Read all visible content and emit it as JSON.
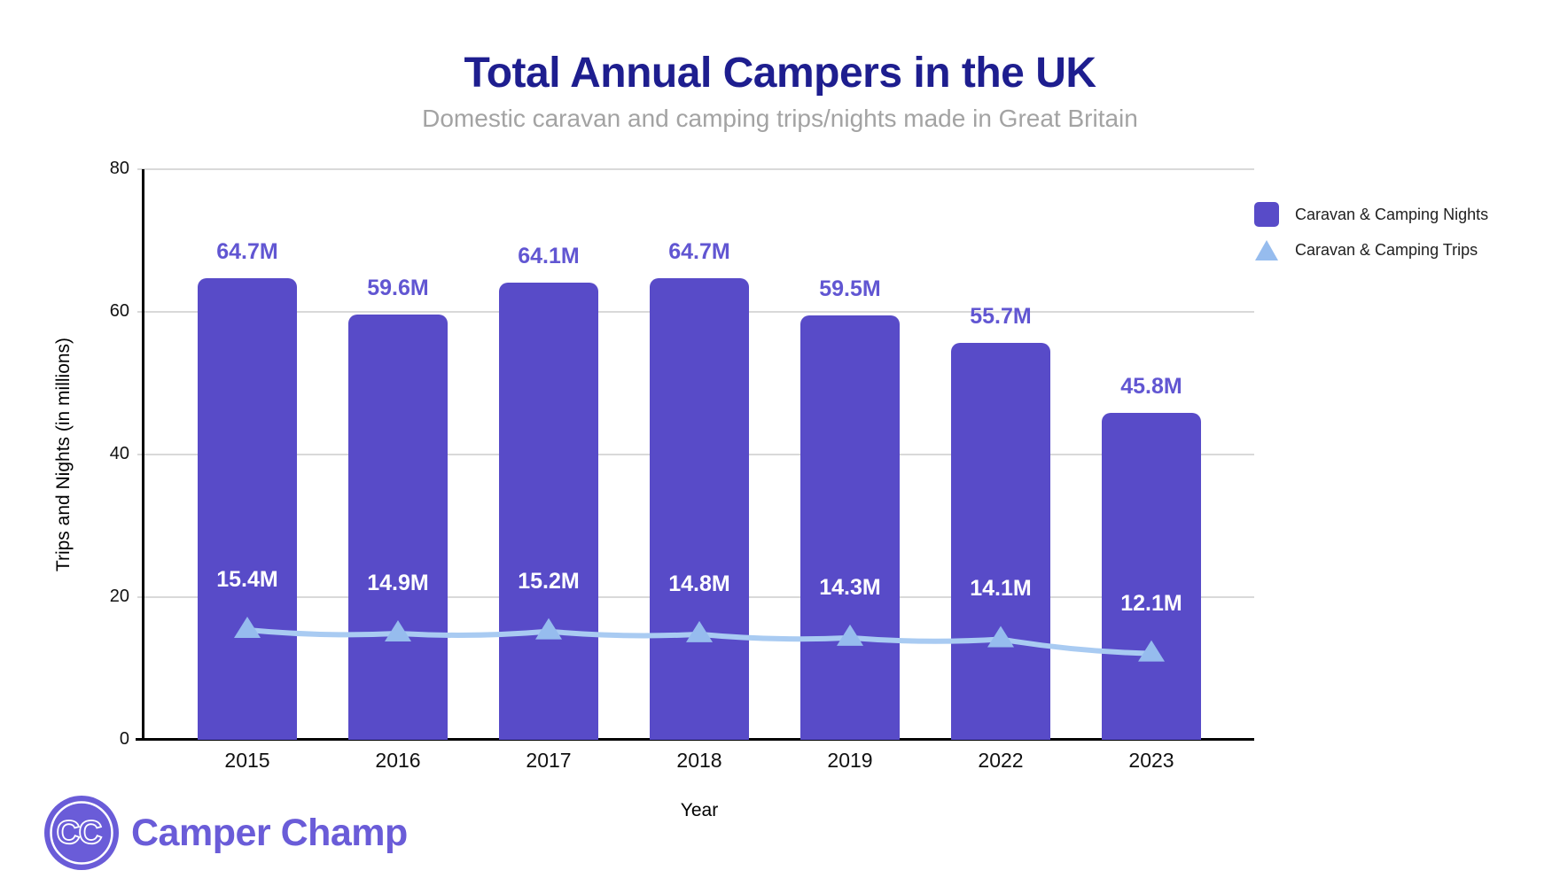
{
  "header": {
    "title": "Total Annual Campers in the UK",
    "subtitle": "Domestic caravan and camping trips/nights made in Great Britain"
  },
  "legend": {
    "items": [
      {
        "label": "Caravan & Camping Nights",
        "marker": "square",
        "color": "#584BC8"
      },
      {
        "label": "Caravan & Camping Trips",
        "marker": "triangle",
        "color": "#96BCEE"
      }
    ]
  },
  "chart_data": {
    "type": "bar",
    "title": "Total Annual Campers in the UK",
    "subtitle": "Domestic caravan and camping trips/nights made in Great Britain",
    "categories": [
      "2015",
      "2016",
      "2017",
      "2018",
      "2019",
      "2022",
      "2023"
    ],
    "series": [
      {
        "name": "Caravan & Camping Nights",
        "type": "bar",
        "color": "#584BC8",
        "label_color": "#6156D2",
        "values": [
          64.7,
          59.6,
          64.1,
          64.7,
          59.5,
          55.7,
          45.8
        ],
        "labels": [
          "64.7M",
          "59.6M",
          "64.1M",
          "64.7M",
          "59.5M",
          "55.7M",
          "45.8M"
        ]
      },
      {
        "name": "Caravan & Camping Trips",
        "type": "line",
        "color": "#A9CBF2",
        "marker": "triangle",
        "marker_color": "#96BCEE",
        "label_color": "#FFFFFF",
        "values": [
          15.4,
          14.9,
          15.2,
          14.8,
          14.3,
          14.1,
          12.1
        ],
        "labels": [
          "15.4M",
          "14.9M",
          "15.2M",
          "14.8M",
          "14.3M",
          "14.1M",
          "12.1M"
        ]
      }
    ],
    "xlabel": "Year",
    "ylabel": "Trips and Nights (in millions)",
    "ylim": [
      0,
      80
    ],
    "yticks": [
      0,
      20,
      40,
      60,
      80
    ],
    "grid": true,
    "legend_position": "top-right"
  },
  "footer": {
    "logo_monogram": "CC",
    "logo_text": "Camper Champ"
  },
  "colors": {
    "title": "#1E1E8F",
    "subtitle": "#A3A3A3",
    "bar": "#584BC8",
    "bar_label": "#6156D2",
    "line": "#A9CBF2",
    "line_marker": "#96BCEE",
    "gridline": "#D9D9D9",
    "axis": "#000000",
    "logo": "#6A5CD8"
  }
}
